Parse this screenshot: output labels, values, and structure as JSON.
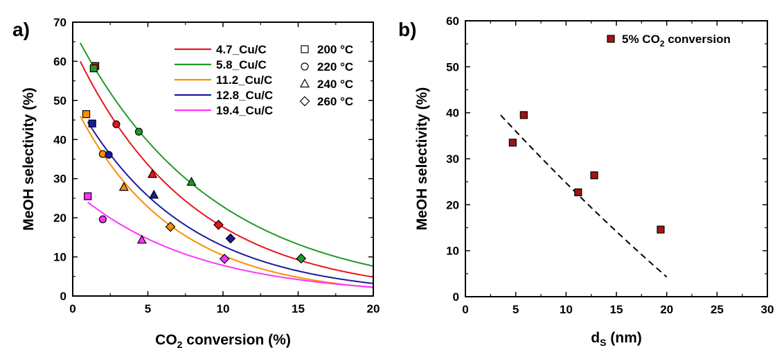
{
  "chart_data": [
    {
      "panel_label": "a)",
      "type": "scatter",
      "xlabel": "CO₂ conversion (%)",
      "ylabel": "MeOH selectivity (%)",
      "xlim": [
        0,
        20
      ],
      "ylim": [
        0,
        70
      ],
      "xticks": [
        "0",
        "5",
        "10",
        "15",
        "20"
      ],
      "yticks": [
        "0",
        "10",
        "20",
        "30",
        "40",
        "50",
        "60",
        "70"
      ],
      "temperatures": [
        {
          "label": "200 °C",
          "marker": "square"
        },
        {
          "label": "220 °C",
          "marker": "circle"
        },
        {
          "label": "240 °C",
          "marker": "triangle"
        },
        {
          "label": "260 °C",
          "marker": "diamond"
        }
      ],
      "series": [
        {
          "name": "4.7_Cu/C",
          "color": "#e8141b",
          "points": [
            {
              "x": 1.5,
              "y": 58.8,
              "marker": "square"
            },
            {
              "x": 2.9,
              "y": 43.9,
              "marker": "circle"
            },
            {
              "x": 5.3,
              "y": 31.1,
              "marker": "triangle"
            },
            {
              "x": 9.7,
              "y": 18.2,
              "marker": "diamond"
            }
          ],
          "fit": {
            "x0": 0.5,
            "y0": 60.0,
            "k": 0.129
          }
        },
        {
          "name": "5.8_Cu/C",
          "color": "#1f9a2a",
          "points": [
            {
              "x": 1.4,
              "y": 58.2,
              "marker": "square"
            },
            {
              "x": 4.4,
              "y": 42.0,
              "marker": "circle"
            },
            {
              "x": 7.9,
              "y": 29.1,
              "marker": "triangle"
            },
            {
              "x": 15.2,
              "y": 9.6,
              "marker": "diamond"
            }
          ],
          "fit": {
            "x0": 0.5,
            "y0": 64.7,
            "k": 0.1095
          }
        },
        {
          "name": "11.2_Cu/C",
          "color": "#ff8c00",
          "points": [
            {
              "x": 0.9,
              "y": 46.5,
              "marker": "square"
            },
            {
              "x": 2.0,
              "y": 36.3,
              "marker": "circle"
            },
            {
              "x": 3.4,
              "y": 27.8,
              "marker": "triangle"
            },
            {
              "x": 6.5,
              "y": 17.7,
              "marker": "diamond"
            }
          ],
          "fit": {
            "x0": 0.5,
            "y0": 46.0,
            "k": 0.1565
          }
        },
        {
          "name": "12.8_Cu/C",
          "color": "#1a1a9c",
          "points": [
            {
              "x": 1.3,
              "y": 44.1,
              "marker": "square"
            },
            {
              "x": 2.4,
              "y": 36.1,
              "marker": "circle"
            },
            {
              "x": 5.4,
              "y": 25.8,
              "marker": "triangle"
            },
            {
              "x": 10.5,
              "y": 14.7,
              "marker": "diamond"
            }
          ],
          "fit": {
            "x0": 1.0,
            "y0": 44.5,
            "k": 0.1385
          }
        },
        {
          "name": "19.4_Cu/C",
          "color": "#ff33ff",
          "points": [
            {
              "x": 1.0,
              "y": 25.5,
              "marker": "square"
            },
            {
              "x": 2.0,
              "y": 19.6,
              "marker": "circle"
            },
            {
              "x": 4.6,
              "y": 14.3,
              "marker": "triangle"
            },
            {
              "x": 10.1,
              "y": 9.5,
              "marker": "diamond"
            }
          ],
          "fit": {
            "x0": 1.0,
            "y0": 24.0,
            "k": 0.1245
          }
        }
      ],
      "marker_fill": "#ffffff",
      "marker_fill_lighter": true
    },
    {
      "panel_label": "b)",
      "type": "scatter",
      "xlabel": "d",
      "xlabel_subscript": "S",
      "xlabel_unit": " (nm)",
      "ylabel": "MeOH selectivity (%)",
      "xlim": [
        0,
        30
      ],
      "ylim": [
        0,
        60
      ],
      "xticks": [
        "0",
        "5",
        "10",
        "15",
        "20",
        "25",
        "30"
      ],
      "yticks": [
        "0",
        "10",
        "20",
        "30",
        "40",
        "50",
        "60"
      ],
      "series": [
        {
          "name": "5% CO₂ conversion",
          "color": "#a01518",
          "points": [
            {
              "x": 4.7,
              "y": 33.5
            },
            {
              "x": 5.8,
              "y": 39.5
            },
            {
              "x": 11.2,
              "y": 22.7
            },
            {
              "x": 12.8,
              "y": 26.4
            },
            {
              "x": 19.4,
              "y": 14.6
            }
          ]
        }
      ],
      "trend": {
        "style": "dashed",
        "x0": 3.5,
        "x1": 20.0,
        "poly": [
          47.9,
          -2.45,
          0.0135
        ]
      }
    }
  ]
}
